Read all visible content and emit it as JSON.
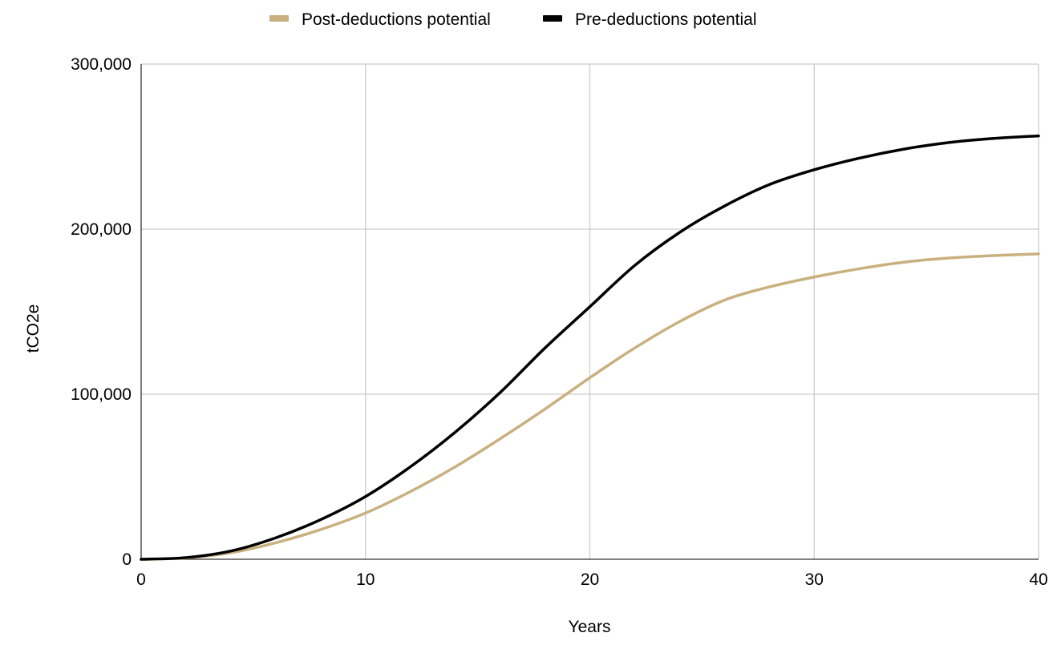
{
  "chart_data": {
    "type": "line",
    "title": "",
    "xlabel": "Years",
    "ylabel": "tCO2e",
    "xlim": [
      0,
      40
    ],
    "ylim": [
      0,
      300000
    ],
    "grid": true,
    "legend_position": "top-center",
    "x_ticks": [
      0,
      10,
      20,
      30,
      40
    ],
    "x_tick_labels": [
      "0",
      "10",
      "20",
      "30",
      "40"
    ],
    "y_ticks": [
      0,
      100000,
      200000,
      300000
    ],
    "y_tick_labels": [
      "0",
      "100,000",
      "200,000",
      "300,000"
    ],
    "x": [
      0,
      2,
      4,
      6,
      8,
      10,
      12,
      14,
      16,
      18,
      20,
      22,
      24,
      26,
      28,
      30,
      32,
      34,
      36,
      38,
      40
    ],
    "series": [
      {
        "name": "Post-deductions potential",
        "color": "#c9b07e",
        "values": [
          0,
          800,
          4000,
          10000,
          18000,
          28000,
          41000,
          56000,
          73000,
          91000,
          110000,
          128000,
          144000,
          157000,
          165000,
          171000,
          176000,
          180000,
          182500,
          184000,
          185000
        ]
      },
      {
        "name": "Pre-deductions potential",
        "color": "#000000",
        "values": [
          0,
          1000,
          5000,
          13000,
          24000,
          38000,
          56000,
          77000,
          101000,
          128000,
          153000,
          178000,
          198000,
          214000,
          227000,
          236000,
          243000,
          248500,
          252500,
          255000,
          256500
        ]
      }
    ]
  }
}
